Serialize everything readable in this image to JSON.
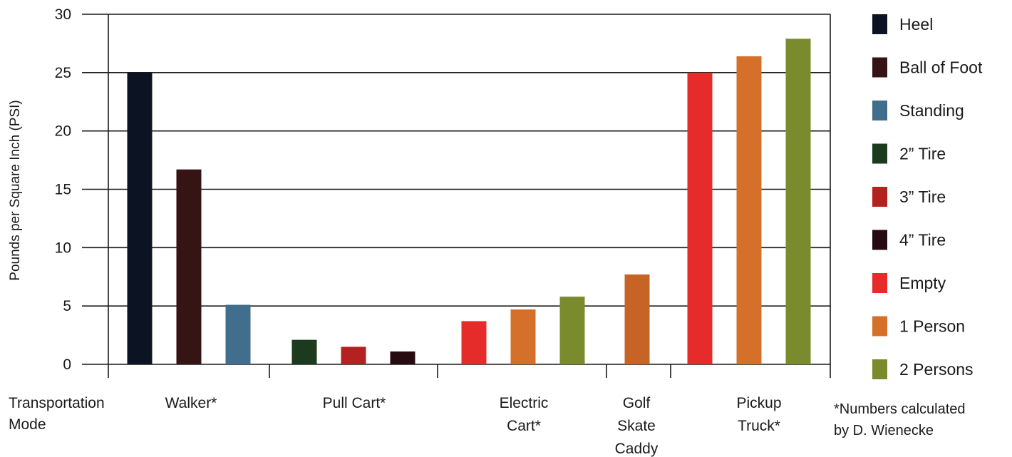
{
  "chart_data": {
    "type": "bar",
    "title": "",
    "xlabel": "Transportation Mode",
    "ylabel": "Pounds per Square Inch (PSI)",
    "ylim": [
      0,
      30
    ],
    "yticks": [
      0,
      5,
      10,
      15,
      20,
      25,
      30
    ],
    "grid": true,
    "legend_position": "right",
    "groups": [
      {
        "label": "Walker*",
        "bars": [
          {
            "series": "Heel",
            "value": 25
          },
          {
            "series": "Ball of Foot",
            "value": 16.7
          },
          {
            "series": "Standing",
            "value": 5.1
          }
        ]
      },
      {
        "label": "Pull Cart*",
        "bars": [
          {
            "series": "2” Tire",
            "value": 2.1
          },
          {
            "series": "3” Tire",
            "value": 1.5
          },
          {
            "series": "4” Tire",
            "value": 1.1
          }
        ]
      },
      {
        "label": "Electric Cart*",
        "bars": [
          {
            "series": "Empty",
            "value": 3.7
          },
          {
            "series": "1 Person",
            "value": 4.7
          },
          {
            "series": "2 Persons",
            "value": 5.8
          }
        ]
      },
      {
        "label": "Golf Skate Caddy",
        "bars": [
          {
            "series": "1 Person",
            "value": 7.7
          }
        ]
      },
      {
        "label": "Pickup Truck*",
        "bars": [
          {
            "series": "Empty",
            "value": 25
          },
          {
            "series": "1 Person",
            "value": 26.4
          },
          {
            "series": "2 Persons",
            "value": 27.9
          }
        ]
      }
    ],
    "legend": [
      {
        "name": "Heel",
        "color": "#0c1322"
      },
      {
        "name": "Ball of Foot",
        "color": "#371414"
      },
      {
        "name": "Standing",
        "color": "#416e8c"
      },
      {
        "name": "2” Tire",
        "color": "#1b3a1e"
      },
      {
        "name": "3” Tire",
        "color": "#b4221f"
      },
      {
        "name": "4” Tire",
        "color": "#260c10"
      },
      {
        "name": "Empty",
        "color": "#e62b2b"
      },
      {
        "name": "1 Person",
        "color": "#d4702a"
      },
      {
        "name": "2 Persons",
        "color": "#7a8b2e"
      }
    ],
    "footnote": "*Numbers calculated by D. Wienecke"
  },
  "colors": {
    "golf_skate_caddy_bar": "#c86327",
    "axis": "#1a1a1a"
  }
}
